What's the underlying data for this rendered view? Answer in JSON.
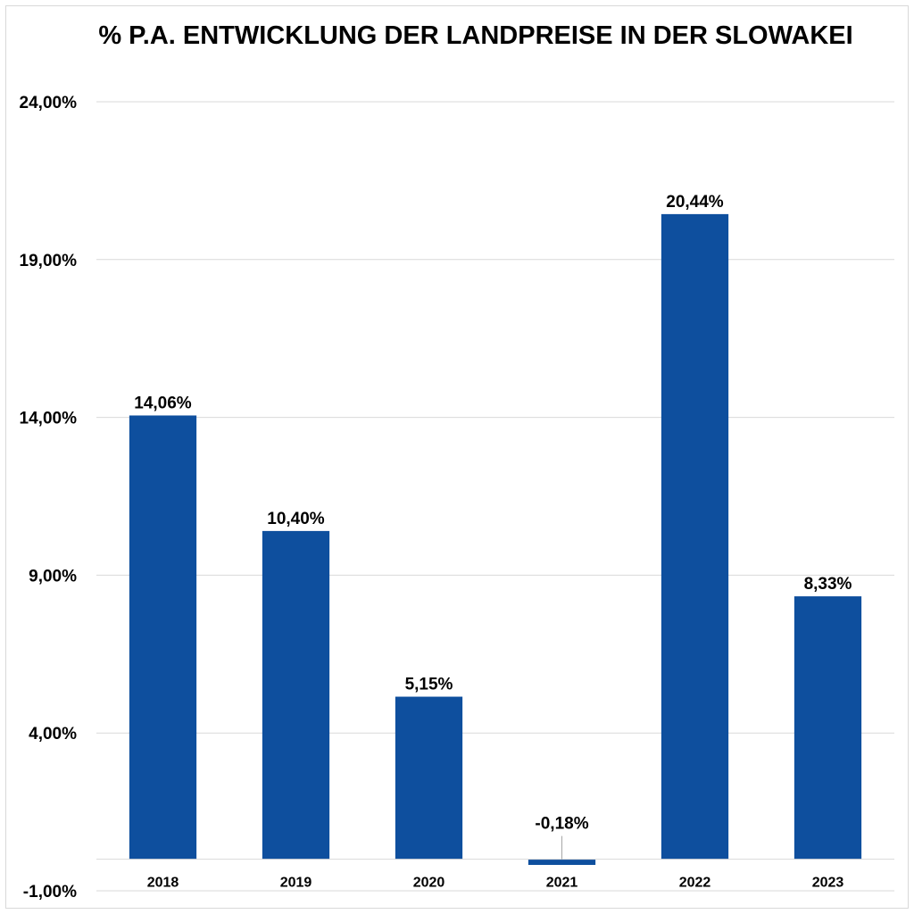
{
  "chart_data": {
    "type": "bar",
    "title": "% P.A. ENTWICKLUNG DER LANDPREISE IN DER SLOWAKEI",
    "xlabel": "",
    "ylabel": "",
    "categories": [
      "2018",
      "2019",
      "2020",
      "2021",
      "2022",
      "2023"
    ],
    "values": [
      14.06,
      10.4,
      5.15,
      -0.18,
      20.44,
      8.33
    ],
    "data_labels": [
      "14,06%",
      "10,40%",
      "5,15%",
      "-0,18%",
      "20,44%",
      "8,33%"
    ],
    "ylim": [
      -1,
      24
    ],
    "yticks": [
      -1,
      4,
      9,
      14,
      19,
      24
    ],
    "ytick_labels": [
      "-1,00%",
      "4,00%",
      "9,00%",
      "14,00%",
      "19,00%",
      "24,00%"
    ],
    "grid": true,
    "legend": "none",
    "bar_color": "#0e4f9e"
  }
}
